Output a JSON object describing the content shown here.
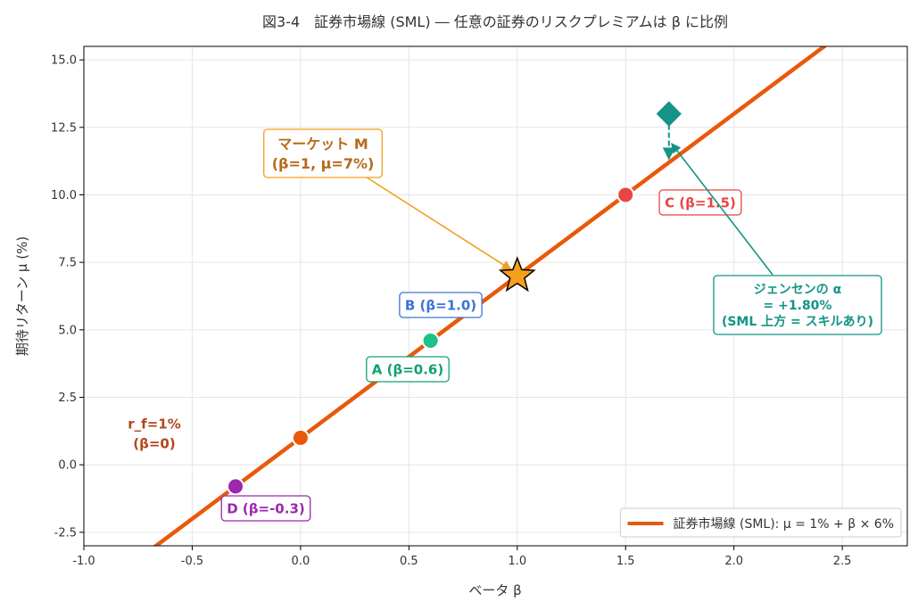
{
  "chart_data": {
    "type": "line",
    "title": "図3-4　証券市場線 (SML) ― 任意の証券のリスクプレミアムは β に比例",
    "xlabel": "ベータ β",
    "ylabel": "期待リターン μ (%)",
    "xlim": [
      -1.0,
      2.8
    ],
    "ylim": [
      -3.0,
      15.5
    ],
    "x_ticks": [
      -1.0,
      -0.5,
      0.0,
      0.5,
      1.0,
      1.5,
      2.0,
      2.5
    ],
    "x_tick_labels": [
      "-1.0",
      "-0.5",
      "0.0",
      "0.5",
      "1.0",
      "1.5",
      "2.0",
      "2.5"
    ],
    "y_ticks": [
      -2.5,
      0.0,
      2.5,
      5.0,
      7.5,
      10.0,
      12.5,
      15.0
    ],
    "y_tick_labels": [
      "-2.5",
      "0.0",
      "2.5",
      "5.0",
      "7.5",
      "10.0",
      "12.5",
      "15.0"
    ],
    "grid": true,
    "legend_position": "bottom-right",
    "series": [
      {
        "name": "証券市場線 (SML): μ = 1% + β × 6%",
        "color": "#e8590c",
        "x": [
          -1.0,
          2.8
        ],
        "y": [
          -5.0,
          17.8
        ]
      }
    ],
    "points": [
      {
        "id": "rf",
        "x": 0.0,
        "y": 1.0,
        "color": "#e8590c",
        "marker": "circle",
        "label_lines": [
          "r_f=1%",
          "(β=0)"
        ],
        "label_color": "#b5451b",
        "boxed": false
      },
      {
        "id": "A",
        "x": 0.6,
        "y": 4.6,
        "color": "#20c08a",
        "marker": "circle",
        "label_lines": [
          "A (β=0.6)"
        ],
        "label_color": "#12a06f",
        "boxed": true
      },
      {
        "id": "B",
        "x": 1.0,
        "y": 7.0,
        "color": "#4285f4",
        "marker": "none",
        "label_lines": [
          "B (β=1.0)"
        ],
        "label_color": "#3b73d8",
        "boxed": true
      },
      {
        "id": "C",
        "x": 1.5,
        "y": 10.0,
        "color": "#e84545",
        "marker": "circle",
        "label_lines": [
          "C (β=1.5)"
        ],
        "label_color": "#e84545",
        "boxed": true
      },
      {
        "id": "D",
        "x": -0.3,
        "y": -0.8,
        "color": "#9c27b0",
        "marker": "circle",
        "label_lines": [
          "D (β=-0.3)"
        ],
        "label_color": "#9c27b0",
        "boxed": true
      }
    ],
    "market": {
      "x": 1.0,
      "y": 7.0,
      "color": "#f4a01c",
      "marker": "star",
      "label_lines": [
        "マーケット M",
        "(β=1, μ=7%)"
      ],
      "label_color": "#b8691a"
    },
    "jensen": {
      "x": 1.7,
      "y": 13.0,
      "sml_y": 11.2,
      "color": "#139486",
      "marker": "diamond",
      "label_lines": [
        "ジェンセンの α",
        "= +1.80%",
        "(SML 上方 = スキルあり)"
      ]
    },
    "colors": {
      "axis": "#000000",
      "grid": "#e5e5e5",
      "text": "#333333"
    }
  }
}
